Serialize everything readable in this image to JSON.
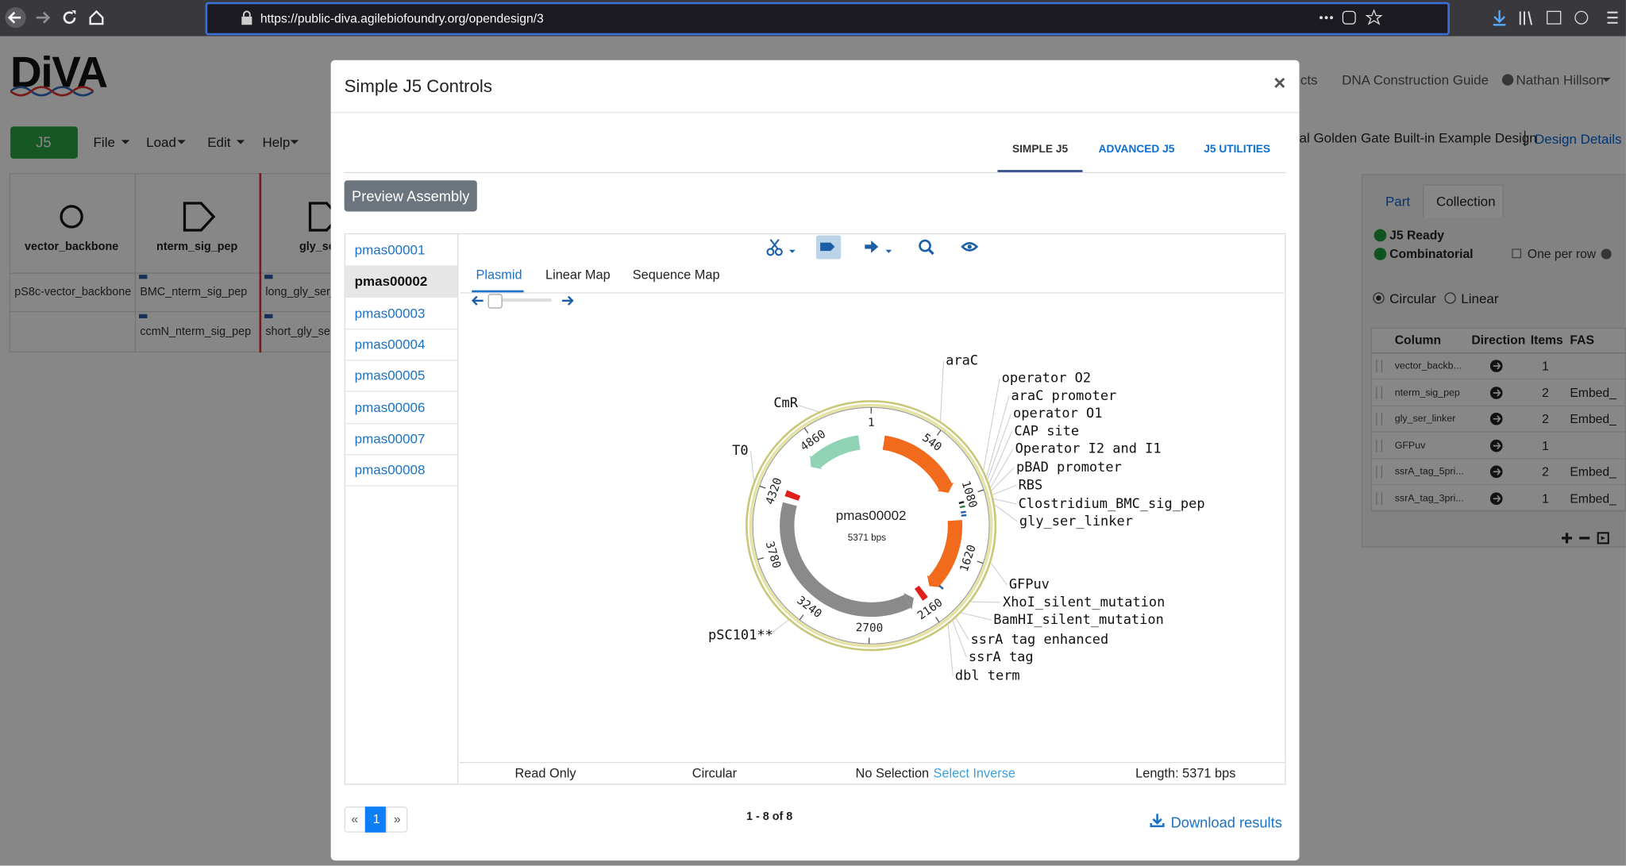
{
  "browser": {
    "url": "https://public-diva.agilebiofoundry.org/opendesign/3"
  },
  "app": {
    "logo": "DiVA",
    "j5": "J5",
    "menus": [
      "File",
      "Load",
      "Edit",
      "Help"
    ],
    "nav": [
      "cts",
      "DNA Construction Guide",
      "Nathan Hillson"
    ],
    "design_name": "al Golden Gate Built-in Example Design",
    "design_details": "Design Details",
    "columns": [
      {
        "name": "vector_backbone",
        "parts": [
          "pS8c-vector_backbone"
        ]
      },
      {
        "name": "nterm_sig_pep",
        "parts": [
          "BMC_nterm_sig_pep",
          "ccmN_nterm_sig_pep"
        ]
      },
      {
        "name": "gly_ser_",
        "parts": [
          "long_gly_ser_",
          "short_gly_ser"
        ]
      }
    ],
    "side_panel": {
      "tabs": [
        "Part",
        "Collection"
      ],
      "status": [
        "J5 Ready",
        "Combinatorial"
      ],
      "one_per_row": "One per row",
      "shapes": [
        "Circular",
        "Linear"
      ],
      "headers": [
        "Column",
        "Direction",
        "Items",
        "FAS"
      ],
      "rows": [
        {
          "column": "vector_backb...",
          "items": "1"
        },
        {
          "column": "nterm_sig_pep",
          "items": "2",
          "fas": "Embed_"
        },
        {
          "column": "gly_ser_linker",
          "items": "2",
          "fas": "Embed_"
        },
        {
          "column": "GFPuv",
          "items": "1"
        },
        {
          "column": "ssrA_tag_5pri...",
          "items": "2",
          "fas": "Embed_"
        },
        {
          "column": "ssrA_tag_3pri...",
          "items": "1",
          "fas": "Embed_"
        }
      ]
    }
  },
  "modal": {
    "title": "Simple J5 Controls",
    "close": "×",
    "tabs": [
      "SIMPLE J5",
      "ADVANCED J5",
      "J5 UTILITIES"
    ],
    "preview": "Preview Assembly",
    "plasmids": [
      "pmas00001",
      "pmas00002",
      "pmas00003",
      "pmas00004",
      "pmas00005",
      "pmas00006",
      "pmas00007",
      "pmas00008"
    ],
    "selected": 1,
    "viewer_tabs": [
      "Plasmid",
      "Linear Map",
      "Sequence Map"
    ],
    "map": {
      "name": "pmas00002",
      "length": 5371,
      "length_label": "5371 bps",
      "ticks": [
        1,
        540,
        1080,
        1620,
        2160,
        2700,
        3240,
        3780,
        4320,
        4860
      ],
      "labels": [
        "araC",
        "operator O2",
        "araC promoter",
        "operator O1",
        "CAP site",
        "Operator I2 and I1",
        "pBAD promoter",
        "RBS",
        "Clostridium_BMC_sig_pep",
        "gly_ser_linker",
        "GFPuv",
        "XhoI_silent_mutation",
        "BamHI_silent_mutation",
        "ssrA tag enhanced",
        "ssrA tag",
        "dbl term",
        "pSC101**",
        "T0",
        "CmR"
      ]
    },
    "status": [
      "Read Only",
      "Circular",
      "No Selection",
      "Select Inverse",
      "Length: 5371 bps"
    ],
    "pagination": {
      "prev": "«",
      "page": "1",
      "next": "»",
      "range": "1 - 8 of 8"
    },
    "download": "Download results"
  }
}
